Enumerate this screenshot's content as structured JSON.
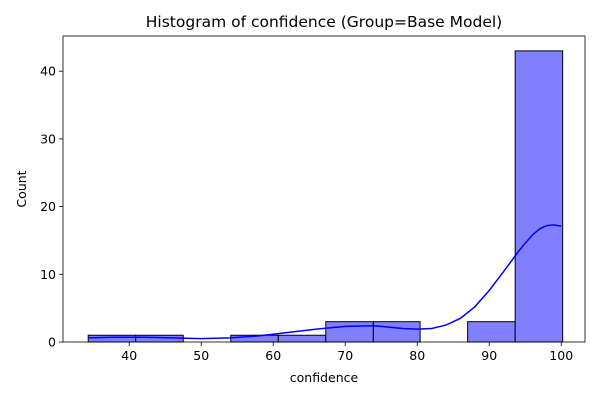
{
  "chart_data": {
    "type": "bar",
    "title": "Histogram of confidence (Group=Base Model)",
    "xlabel": "confidence",
    "ylabel": "Count",
    "xlim": [
      30.8,
      103.3
    ],
    "ylim": [
      0,
      45.2
    ],
    "xticks": [
      40,
      50,
      60,
      70,
      80,
      90,
      100
    ],
    "yticks": [
      0,
      10,
      20,
      30,
      40
    ],
    "bins": [
      {
        "start": 34.3,
        "end": 40.9,
        "count": 1
      },
      {
        "start": 40.9,
        "end": 47.5,
        "count": 1
      },
      {
        "start": 47.5,
        "end": 54.1,
        "count": 0
      },
      {
        "start": 54.1,
        "end": 60.7,
        "count": 1
      },
      {
        "start": 60.7,
        "end": 67.3,
        "count": 1
      },
      {
        "start": 67.3,
        "end": 73.9,
        "count": 3
      },
      {
        "start": 73.9,
        "end": 80.4,
        "count": 3
      },
      {
        "start": 80.4,
        "end": 87.0,
        "count": 0
      },
      {
        "start": 87.0,
        "end": 93.6,
        "count": 3
      },
      {
        "start": 93.6,
        "end": 100.2,
        "count": 43
      }
    ],
    "kde": {
      "x": [
        34.3,
        38,
        42,
        46,
        50,
        54,
        58,
        62,
        66,
        70,
        74,
        76,
        78,
        80,
        82,
        84,
        86,
        88,
        90,
        92,
        94,
        95,
        96,
        97,
        98,
        99,
        100
      ],
      "y": [
        0.6,
        0.7,
        0.7,
        0.6,
        0.5,
        0.6,
        0.9,
        1.4,
        1.9,
        2.3,
        2.4,
        2.2,
        2.0,
        1.9,
        2.0,
        2.5,
        3.5,
        5.2,
        7.6,
        10.4,
        13.3,
        14.6,
        15.8,
        16.7,
        17.2,
        17.3,
        17.1
      ]
    },
    "colors": {
      "bar_fill": "#8080ff",
      "bar_edge": "#000000",
      "kde_line": "#0000ff"
    },
    "grid": false,
    "legend": "none"
  }
}
